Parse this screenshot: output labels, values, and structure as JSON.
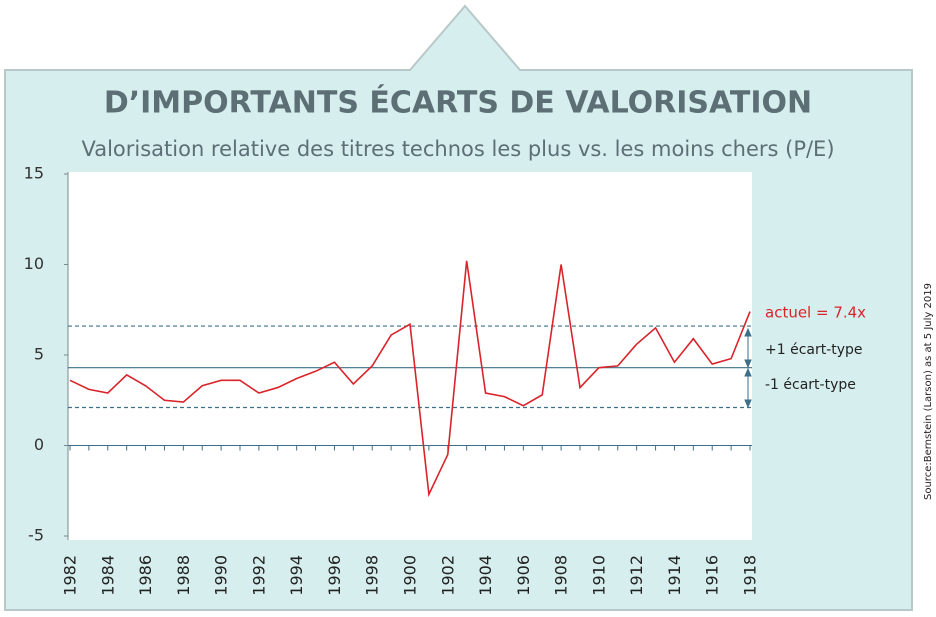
{
  "chart_data": {
    "type": "line",
    "title": "D’IMPORTANTS ÉCARTS DE VALORISATION",
    "subtitle": "Valorisation relative des titres technos les plus vs. les moins chers (P/E)",
    "categories": [
      "1982",
      null,
      "1984",
      null,
      "1986",
      null,
      "1988",
      null,
      "1990",
      null,
      "1992",
      null,
      "1994",
      null,
      "1996",
      null,
      "1998",
      null,
      "1900",
      null,
      "1902",
      null,
      "1904",
      null,
      "1906",
      null,
      "1908",
      null,
      "1910",
      null,
      "1912",
      null,
      "1914",
      null,
      "1916",
      null,
      "1918"
    ],
    "series": [
      {
        "name": "P/E relatif",
        "color": "#d9242b",
        "values": [
          3.6,
          3.1,
          2.9,
          3.9,
          3.3,
          2.5,
          2.4,
          3.3,
          3.6,
          3.6,
          2.9,
          3.2,
          3.7,
          4.1,
          4.6,
          3.4,
          4.4,
          6.1,
          6.7,
          -2.7,
          -0.5,
          10.2,
          2.9,
          2.7,
          2.2,
          2.8,
          10.0,
          3.2,
          4.3,
          4.4,
          5.6,
          6.5,
          4.6,
          5.9,
          4.5,
          4.8,
          7.4
        ]
      }
    ],
    "reference_lines": [
      {
        "value": 6.6,
        "style": "dashed"
      },
      {
        "value": 4.3,
        "style": "solid"
      },
      {
        "value": 2.1,
        "style": "dashed"
      }
    ],
    "ylim": [
      -5,
      15
    ],
    "yticks": [
      -5,
      0,
      5,
      10,
      15
    ],
    "annotations": [
      "actuel = 7.4x",
      "+1 écart-type",
      "-1 écart-type"
    ],
    "source": "Source:Bernstein (Larson) as at 5 July 2019"
  }
}
